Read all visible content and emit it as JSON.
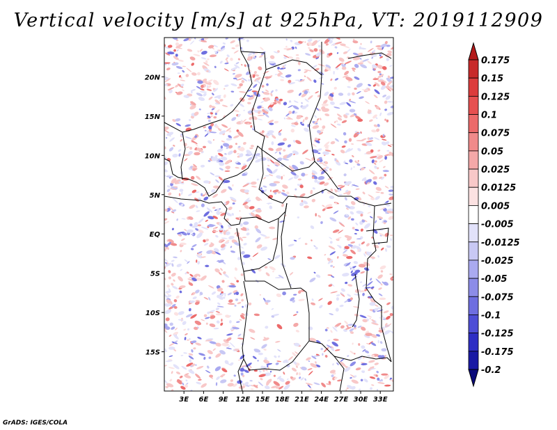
{
  "chart_data": {
    "type": "heatmap",
    "title": "Vertical velocity [m/s] at 925hPa, VT: 2019112909",
    "variable": "Vertical velocity",
    "units": "m/s",
    "level": "925hPa",
    "valid_time": "2019112909",
    "x_axis": {
      "label": "",
      "range": [
        0,
        35
      ],
      "ticks": [
        3,
        6,
        9,
        12,
        15,
        18,
        21,
        24,
        27,
        30,
        33
      ],
      "tick_labels": [
        "3E",
        "6E",
        "9E",
        "12E",
        "15E",
        "18E",
        "21E",
        "24E",
        "27E",
        "30E",
        "33E"
      ]
    },
    "y_axis": {
      "label": "",
      "range": [
        -20,
        25
      ],
      "ticks": [
        20,
        15,
        10,
        5,
        0,
        -5,
        -10,
        -15
      ],
      "tick_labels": [
        "20N",
        "15N",
        "10N",
        "5N",
        "EQ",
        "5S",
        "10S",
        "15S"
      ]
    },
    "colorbar": {
      "levels": [
        "0.175",
        "0.15",
        "0.125",
        "0.1",
        "0.075",
        "0.05",
        "0.025",
        "0.0125",
        "0.005",
        "-0.005",
        "-0.0125",
        "-0.025",
        "-0.05",
        "-0.075",
        "-0.1",
        "-0.125",
        "-0.175",
        "-0.2"
      ],
      "colors": [
        "#b41a1a",
        "#c82a2a",
        "#dc3c3c",
        "#e65050",
        "#ec6a6a",
        "#f08a8a",
        "#f4a8a8",
        "#f8c8c8",
        "#fce2e2",
        "#ffffff",
        "#e2e2fa",
        "#c8c8f4",
        "#aaaaf0",
        "#8c8ce8",
        "#6e6ee0",
        "#4e4ed6",
        "#2e2ec4",
        "#1a1aa4",
        "#0a0a7a"
      ],
      "extend": "both"
    }
  },
  "footer": "GrADS: IGES/COLA",
  "colors": {
    "positive": "#e05050",
    "negative": "#5a5ad8",
    "boundary": "#000000"
  }
}
